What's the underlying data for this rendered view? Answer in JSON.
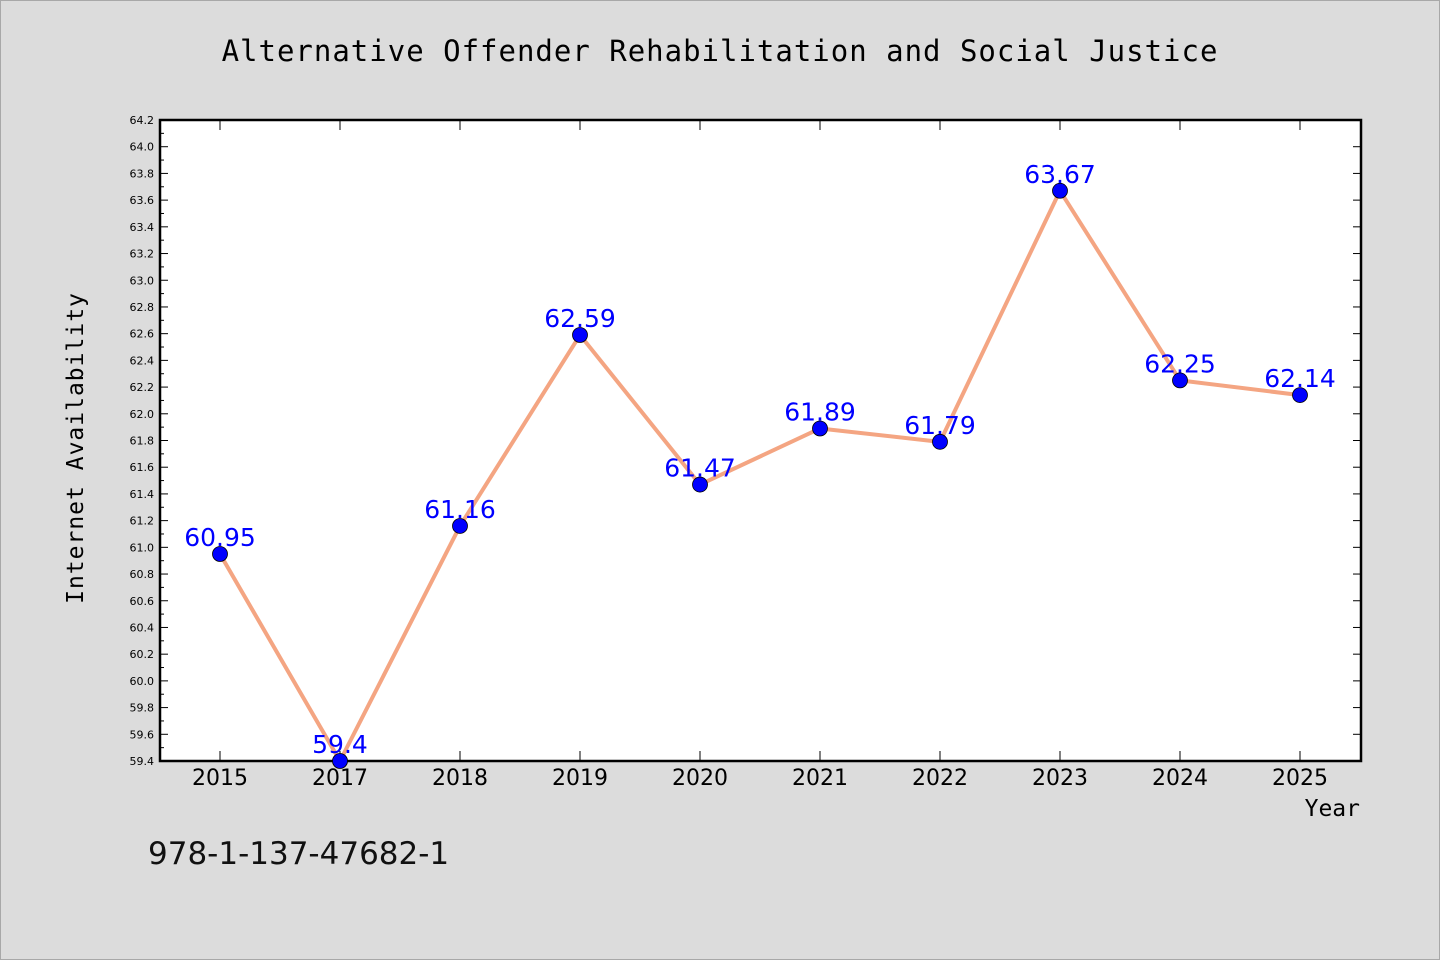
{
  "chart_data": {
    "type": "line",
    "title": "Alternative Offender Rehabilitation and Social Justice",
    "xlabel": "Year",
    "ylabel": "Internet Availability",
    "categories": [
      "2015",
      "2017",
      "2018",
      "2019",
      "2020",
      "2021",
      "2022",
      "2023",
      "2024",
      "2025"
    ],
    "series": [
      {
        "values": [
          60.95,
          59.4,
          61.16,
          62.59,
          61.47,
          61.89,
          61.79,
          63.67,
          62.25,
          62.14
        ],
        "labels": [
          "60.95",
          "59.4",
          "61.16",
          "62.59",
          "61.47",
          "61.89",
          "61.79",
          "63.67",
          "62.25",
          "62.14"
        ],
        "line_color": "#f4a582",
        "marker_color": "#0000ff"
      }
    ],
    "ylim": [
      59.4,
      64.2
    ],
    "yticks": [
      "59.4",
      "59.6",
      "59.8",
      "60.0",
      "60.2",
      "60.4",
      "60.6",
      "60.8",
      "61.0",
      "61.2",
      "61.4",
      "61.6",
      "61.8",
      "62.0",
      "62.2",
      "62.4",
      "62.6",
      "62.8",
      "63.0",
      "63.2",
      "63.4",
      "63.6",
      "63.8",
      "64.0",
      "64.2"
    ],
    "grid": false,
    "label_color": "#0000ff"
  },
  "footer": {
    "isbn": "978-1-137-47682-1"
  }
}
